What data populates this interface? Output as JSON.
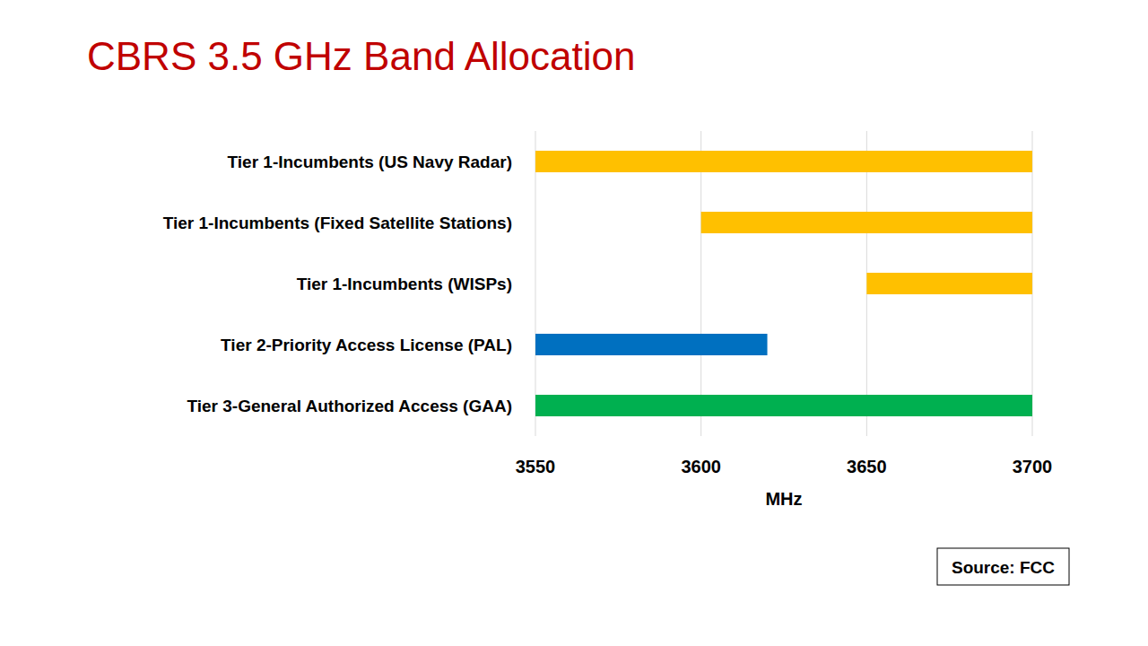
{
  "chart_data": {
    "type": "bar",
    "orientation": "horizontal",
    "title": "CBRS 3.5 GHz Band Allocation",
    "categories": [
      "Tier 1-Incumbents (US Navy Radar)",
      "Tier 1-Incumbents (Fixed Satellite Stations)",
      "Tier 1-Incumbents (WISPs)",
      "Tier 2-Priority Access License (PAL)",
      "Tier 3-General Authorized Access (GAA)"
    ],
    "starts": [
      3550,
      3600,
      3650,
      3550,
      3550
    ],
    "values": [
      3700,
      3700,
      3700,
      3620,
      3700
    ],
    "colors": [
      "#ffc000",
      "#ffc000",
      "#ffc000",
      "#0070c0",
      "#00b050"
    ],
    "xlim": [
      3550,
      3700
    ],
    "xticks": [
      3550,
      3600,
      3650,
      3700
    ],
    "x_label": "MHz",
    "grid": true,
    "source": "Source: FCC"
  }
}
